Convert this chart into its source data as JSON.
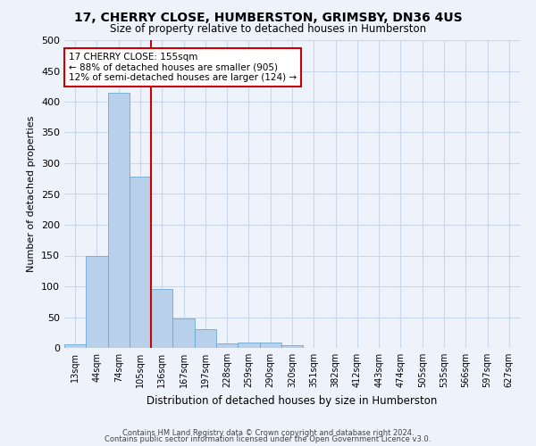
{
  "title": "17, CHERRY CLOSE, HUMBERSTON, GRIMSBY, DN36 4US",
  "subtitle": "Size of property relative to detached houses in Humberston",
  "xlabel": "Distribution of detached houses by size in Humberston",
  "ylabel": "Number of detached properties",
  "footnote1": "Contains HM Land Registry data © Crown copyright and database right 2024.",
  "footnote2": "Contains public sector information licensed under the Open Government Licence v3.0.",
  "bar_labels": [
    "13sqm",
    "44sqm",
    "74sqm",
    "105sqm",
    "136sqm",
    "167sqm",
    "197sqm",
    "228sqm",
    "259sqm",
    "290sqm",
    "320sqm",
    "351sqm",
    "382sqm",
    "412sqm",
    "443sqm",
    "474sqm",
    "505sqm",
    "535sqm",
    "566sqm",
    "597sqm",
    "627sqm"
  ],
  "bar_values": [
    6,
    150,
    415,
    278,
    96,
    48,
    30,
    7,
    9,
    8,
    5,
    0,
    0,
    0,
    0,
    0,
    0,
    0,
    0,
    0,
    0
  ],
  "bar_color": "#b8d0ea",
  "bar_edgecolor": "#6aaad4",
  "grid_color": "#c8d8ec",
  "background_color": "#eef2fb",
  "vline_color": "#cc0000",
  "annotation_text": "17 CHERRY CLOSE: 155sqm\n← 88% of detached houses are smaller (905)\n12% of semi-detached houses are larger (124) →",
  "annotation_box_color": "white",
  "annotation_box_edgecolor": "#cc0000",
  "ylim": [
    0,
    500
  ],
  "yticks": [
    0,
    50,
    100,
    150,
    200,
    250,
    300,
    350,
    400,
    450,
    500
  ],
  "vline_position": 3.5
}
